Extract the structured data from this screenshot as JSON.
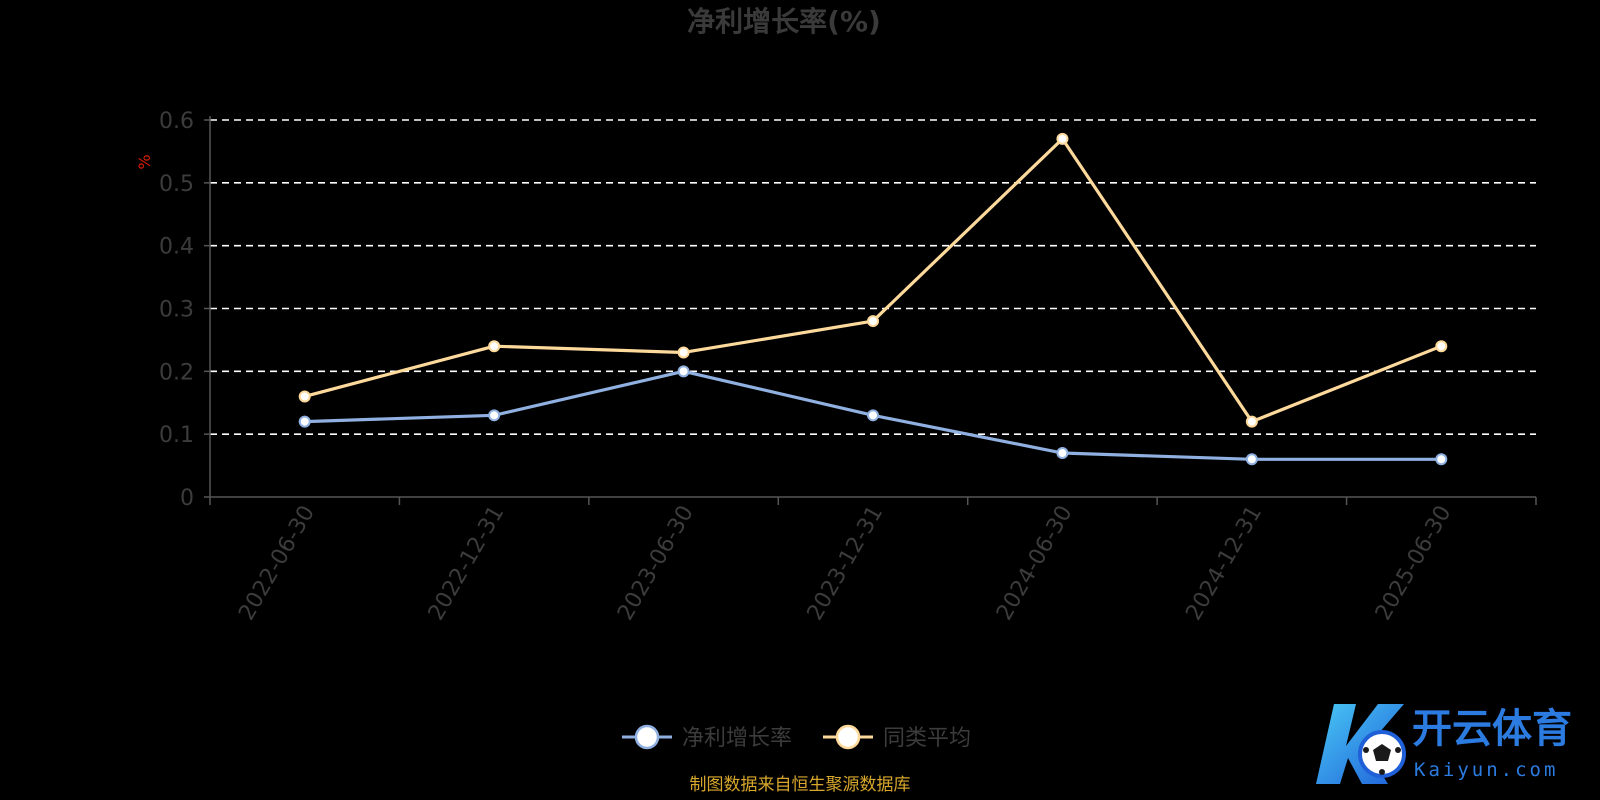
{
  "chart_data": {
    "type": "line",
    "title": "净利增长率(%)",
    "ylabel": "%",
    "xlabel": "",
    "categories": [
      "2022-06-30",
      "2022-12-31",
      "2023-06-30",
      "2023-12-31",
      "2024-06-30",
      "2024-12-31",
      "2025-06-30"
    ],
    "ylim": [
      0,
      0.6
    ],
    "yticks": [
      "0",
      "0.1",
      "0.2",
      "0.3",
      "0.4",
      "0.5",
      "0.6"
    ],
    "grid": true,
    "legend_position": "bottom-center",
    "series": [
      {
        "name": "净利增长率",
        "color": "#8fb0e0",
        "values": [
          0.12,
          0.13,
          0.2,
          0.13,
          0.07,
          0.06,
          0.06
        ]
      },
      {
        "name": "同类平均",
        "color": "#fdd99b",
        "values": [
          0.16,
          0.24,
          0.23,
          0.28,
          0.57,
          0.12,
          0.24
        ]
      }
    ]
  },
  "footer": {
    "source": "制图数据来自恒生聚源数据库"
  },
  "watermark": {
    "brand": "开云体育",
    "domain": "Kaiyun.com"
  }
}
